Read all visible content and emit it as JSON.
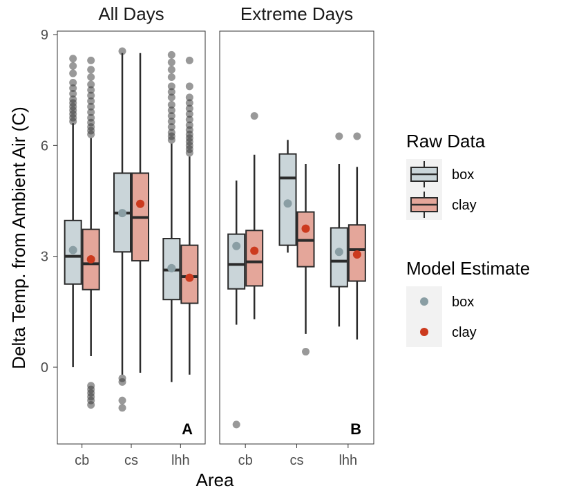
{
  "chart_data": {
    "type": "boxplot",
    "xlabel": "Area",
    "ylabel": "Delta Temp. from Ambient Air (C)",
    "ylim": [
      -2.9,
      9
    ],
    "yticks": [
      0,
      3,
      6,
      9
    ],
    "grid": false,
    "categories": [
      "cb",
      "cs",
      "lhh"
    ],
    "panels": [
      {
        "facet": "All Days",
        "tag": "A",
        "groups": [
          {
            "area": "cb",
            "type": "box",
            "whisker_low": 0.0,
            "q1": 2.25,
            "median": 3.0,
            "q3": 3.97,
            "whisker_high": 6.6,
            "estimate": 3.17,
            "outliers": [
              6.65,
              6.75,
              6.85,
              6.95,
              7.05,
              7.15,
              7.25,
              7.4,
              7.55,
              7.7,
              7.95,
              8.15,
              8.35
            ]
          },
          {
            "area": "cb",
            "type": "clay",
            "whisker_low": 0.3,
            "q1": 2.1,
            "median": 2.8,
            "q3": 3.73,
            "whisker_high": 6.2,
            "estimate": 2.92,
            "outliers": [
              -1.02,
              -0.9,
              -0.8,
              -0.7,
              -0.6,
              -0.5,
              6.3,
              6.4,
              6.5,
              6.62,
              6.75,
              6.9,
              7.05,
              7.2,
              7.35,
              7.5,
              7.65,
              7.85,
              8.05,
              8.3
            ]
          },
          {
            "area": "cs",
            "type": "box",
            "whisker_low": -0.2,
            "q1": 3.12,
            "median": 4.17,
            "q3": 5.25,
            "whisker_high": 8.5,
            "estimate": 4.17,
            "outliers": [
              -1.1,
              -0.9,
              -0.4,
              -0.3,
              8.55
            ]
          },
          {
            "area": "cs",
            "type": "clay",
            "whisker_low": -0.15,
            "q1": 2.88,
            "median": 4.05,
            "q3": 5.25,
            "whisker_high": 8.5,
            "estimate": 4.42,
            "outliers": []
          },
          {
            "area": "lhh",
            "type": "box",
            "whisker_low": -0.4,
            "q1": 1.83,
            "median": 2.63,
            "q3": 3.48,
            "whisker_high": 6.05,
            "estimate": 2.68,
            "outliers": [
              6.15,
              6.25,
              6.35,
              6.5,
              6.65,
              6.8,
              6.95,
              7.1,
              7.3,
              7.45,
              7.6,
              7.85,
              8.05,
              8.25,
              8.45
            ]
          },
          {
            "area": "lhh",
            "type": "clay",
            "whisker_low": -0.2,
            "q1": 1.73,
            "median": 2.45,
            "q3": 3.3,
            "whisker_high": 5.7,
            "estimate": 2.42,
            "outliers": [
              5.8,
              5.9,
              6.0,
              6.1,
              6.2,
              6.3,
              6.42,
              6.55,
              6.7,
              6.85,
              7.0,
              7.15,
              7.3,
              7.6,
              8.3
            ]
          }
        ]
      },
      {
        "facet": "Extreme Days",
        "tag": "B",
        "groups": [
          {
            "area": "cb",
            "type": "box",
            "whisker_low": 1.15,
            "q1": 2.12,
            "median": 2.78,
            "q3": 3.6,
            "whisker_high": 5.05,
            "estimate": 3.28,
            "outliers": [
              -1.55
            ]
          },
          {
            "area": "cb",
            "type": "clay",
            "whisker_low": 1.3,
            "q1": 2.2,
            "median": 2.85,
            "q3": 3.7,
            "whisker_high": 5.75,
            "estimate": 3.15,
            "outliers": [
              6.8
            ]
          },
          {
            "area": "cs",
            "type": "box",
            "whisker_low": 3.1,
            "q1": 3.3,
            "median": 5.12,
            "q3": 5.77,
            "whisker_high": 6.15,
            "estimate": 4.43,
            "outliers": []
          },
          {
            "area": "cs",
            "type": "clay",
            "whisker_low": 0.9,
            "q1": 2.72,
            "median": 3.43,
            "q3": 4.2,
            "whisker_high": 5.5,
            "estimate": 3.75,
            "outliers": [
              0.42
            ]
          },
          {
            "area": "lhh",
            "type": "box",
            "whisker_low": 1.1,
            "q1": 2.18,
            "median": 2.87,
            "q3": 3.77,
            "whisker_high": 5.5,
            "estimate": 3.12,
            "outliers": [
              6.25
            ]
          },
          {
            "area": "lhh",
            "type": "clay",
            "whisker_low": 0.75,
            "q1": 2.33,
            "median": 3.18,
            "q3": 3.85,
            "whisker_high": 5.42,
            "estimate": 3.05,
            "outliers": [
              6.25
            ]
          }
        ]
      }
    ],
    "legend": {
      "position": "right",
      "raw_title": "Raw Data",
      "model_title": "Model Estimate",
      "items": [
        {
          "key": "box",
          "label": "box",
          "fill": "#cad5d9",
          "point": "#8a9ea4"
        },
        {
          "key": "clay",
          "label": "clay",
          "fill": "#e4a69a",
          "point": "#cc3a1e"
        }
      ]
    }
  }
}
